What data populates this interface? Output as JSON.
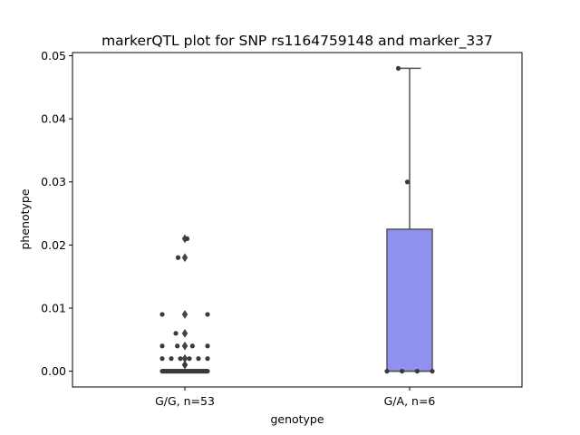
{
  "chart_data": {
    "type": "box",
    "title": "markerQTL plot for SNP rs1164759148 and marker_337",
    "xlabel": "genotype",
    "ylabel": "phenotype",
    "ylim": [
      -0.0025,
      0.0505
    ],
    "yticks": [
      0.0,
      0.01,
      0.02,
      0.03,
      0.04,
      0.05
    ],
    "ytick_labels": [
      "0.00",
      "0.01",
      "0.02",
      "0.03",
      "0.04",
      "0.05"
    ],
    "categories": [
      "G/G, n=53",
      "G/A, n=6"
    ],
    "box_color": "#9090f0",
    "edge_color": "#555555",
    "point_color": "#3a3a3a",
    "groups": [
      {
        "category": "G/G, n=53",
        "box": {
          "whisker_low": 0.0,
          "q1": 0.0,
          "median": 0.0,
          "q3": 0.0,
          "whisker_high": 0.0
        },
        "outliers": [
          0.021,
          0.018,
          0.009,
          0.006,
          0.004,
          0.002,
          0.001
        ],
        "points": [
          0.0,
          0.0,
          0.0,
          0.0,
          0.0,
          0.0,
          0.0,
          0.0,
          0.0,
          0.0,
          0.0,
          0.0,
          0.0,
          0.0,
          0.0,
          0.0,
          0.0,
          0.0,
          0.0,
          0.0,
          0.0,
          0.0,
          0.0,
          0.0,
          0.0,
          0.0,
          0.0,
          0.0,
          0.0,
          0.0,
          0.0,
          0.0,
          0.0,
          0.0,
          0.0,
          0.0,
          0.0,
          0.001,
          0.002,
          0.002,
          0.002,
          0.002,
          0.002,
          0.004,
          0.004,
          0.004,
          0.004,
          0.006,
          0.009,
          0.009,
          0.018,
          0.021,
          0.002
        ]
      },
      {
        "category": "G/A, n=6",
        "box": {
          "whisker_low": 0.0,
          "q1": 0.0,
          "median": 0.0,
          "q3": 0.0225,
          "whisker_high": 0.048
        },
        "outliers": [],
        "points": [
          0.048,
          0.03,
          0.0,
          0.0,
          0.0,
          0.0
        ]
      }
    ]
  }
}
